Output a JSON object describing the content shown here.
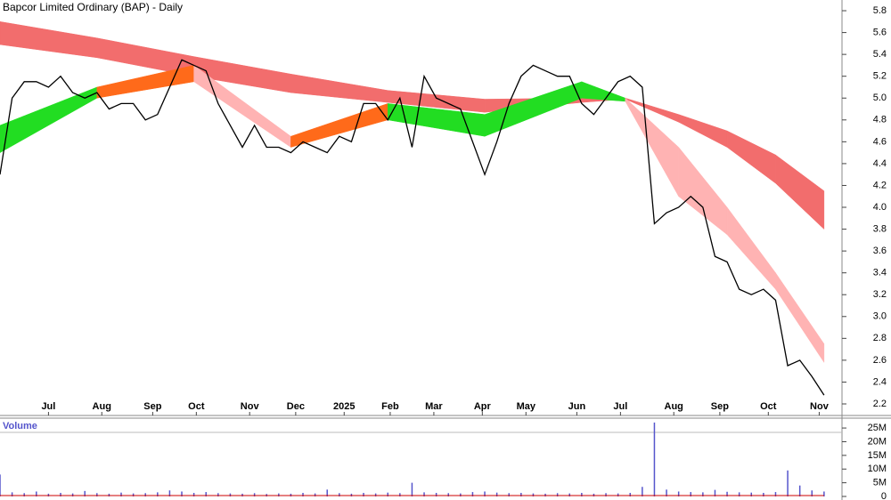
{
  "chart_data": [
    {
      "type": "stock",
      "title": "Bapcor Limited Ordinary (BAP) - Daily",
      "xlim": [
        0,
        347.4
      ],
      "xticks": [
        {
          "value": 20,
          "label": "Jul"
        },
        {
          "value": 42,
          "label": "Aug"
        },
        {
          "value": 63,
          "label": "Sep"
        },
        {
          "value": 81,
          "label": "Oct"
        },
        {
          "value": 103,
          "label": "Nov"
        },
        {
          "value": 122,
          "label": "Dec"
        },
        {
          "value": 142,
          "label": "2025"
        },
        {
          "value": 161,
          "label": "Feb"
        },
        {
          "value": 179,
          "label": "Mar"
        },
        {
          "value": 199,
          "label": "Apr"
        },
        {
          "value": 217,
          "label": "May"
        },
        {
          "value": 238,
          "label": "Jun"
        },
        {
          "value": 256,
          "label": "Jul"
        },
        {
          "value": 278,
          "label": "Aug"
        },
        {
          "value": 297,
          "label": "Sep"
        },
        {
          "value": 317,
          "label": "Oct"
        },
        {
          "value": 338,
          "label": "Nov"
        }
      ],
      "ylim": [
        2.094,
        5.898
      ],
      "yticks": [
        2.2,
        2.4,
        2.6,
        2.8,
        {
          "value": 3,
          "label": "3.0"
        },
        3.2,
        3.4,
        3.6,
        3.8,
        {
          "value": 4,
          "label": "4.0"
        },
        4.2,
        4.4,
        4.6,
        4.8,
        {
          "value": 5,
          "label": "5.0"
        },
        5.2,
        5.4,
        5.6,
        5.8
      ],
      "x": [
        0,
        5,
        10,
        15,
        20,
        25,
        30,
        35,
        40,
        45,
        50,
        55,
        60,
        65,
        70,
        75,
        80,
        85,
        90,
        95,
        100,
        105,
        110,
        115,
        120,
        125,
        130,
        135,
        140,
        145,
        150,
        155,
        160,
        165,
        170,
        175,
        180,
        185,
        190,
        195,
        200,
        205,
        210,
        215,
        220,
        225,
        230,
        235,
        240,
        245,
        250,
        255,
        260,
        265,
        270,
        275,
        280,
        285,
        290,
        295,
        300,
        305,
        310,
        315,
        320,
        325,
        330,
        335,
        340
      ],
      "series": [
        {
          "color": "#000000",
          "values": [
            4.3,
            5.0,
            5.15,
            5.15,
            5.1,
            5.2,
            5.05,
            5.0,
            5.05,
            4.9,
            4.95,
            4.95,
            4.8,
            4.85,
            5.1,
            5.35,
            5.3,
            5.25,
            4.95,
            4.75,
            4.55,
            4.75,
            4.55,
            4.55,
            4.5,
            4.6,
            4.55,
            4.5,
            4.65,
            4.6,
            4.95,
            4.95,
            4.8,
            5.0,
            4.55,
            5.2,
            5.0,
            4.95,
            4.9,
            4.6,
            4.3,
            4.6,
            4.95,
            5.2,
            5.3,
            5.25,
            5.2,
            5.2,
            4.95,
            4.85,
            5.0,
            5.15,
            5.2,
            5.1,
            3.85,
            3.95,
            4.0,
            4.1,
            4.0,
            3.55,
            3.5,
            3.25,
            3.2,
            3.25,
            3.15,
            2.55,
            2.6,
            2.45,
            2.28
          ]
        }
      ],
      "bands": [
        {
          "color": "#f26d6d",
          "x": [
            0,
            40,
            80,
            120,
            160,
            200,
            240,
            258,
            280,
            300,
            320,
            340
          ],
          "upper": [
            5.7,
            5.55,
            5.38,
            5.22,
            5.07,
            4.99,
            5.0,
            5.0,
            4.85,
            4.7,
            4.48,
            4.15
          ],
          "lower": [
            5.49,
            5.37,
            5.2,
            5.05,
            4.96,
            4.87,
            4.96,
            4.99,
            4.78,
            4.55,
            4.22,
            3.8
          ]
        },
        {
          "segment_colors": [
            "#22dd22",
            "#ff6a1a",
            "#ffb3b3",
            "#ff6a1a",
            "#22dd22",
            "#22dd22",
            "#22dd22",
            "#ffb3b3",
            "#ffb3b3",
            "#ffb3b3",
            "#ffb3b3"
          ],
          "x": [
            0,
            40,
            80,
            120,
            160,
            200,
            240,
            258,
            280,
            300,
            320,
            340
          ],
          "upper": [
            4.75,
            5.1,
            5.3,
            4.65,
            4.95,
            4.85,
            5.15,
            5.0,
            4.55,
            4.0,
            3.4,
            2.75
          ],
          "lower": [
            4.5,
            5.0,
            5.15,
            4.55,
            4.8,
            4.65,
            5.0,
            4.97,
            4.1,
            3.75,
            3.25,
            2.58
          ]
        }
      ]
    },
    {
      "type": "bar",
      "title": "Volume",
      "color": "#5555cc",
      "line_color": "#cc0000",
      "xlim": [
        0,
        347.4
      ],
      "ylim": [
        0,
        28600000
      ],
      "yticks": [
        0,
        {
          "value": 5000000,
          "label": "5M"
        },
        {
          "value": 10000000,
          "label": "10M"
        },
        {
          "value": 15000000,
          "label": "15M"
        },
        {
          "value": 20000000,
          "label": "20M"
        },
        {
          "value": 25000000,
          "label": "25M"
        }
      ],
      "x": [
        0,
        5,
        10,
        15,
        20,
        25,
        30,
        35,
        40,
        45,
        50,
        55,
        60,
        65,
        70,
        75,
        80,
        85,
        90,
        95,
        100,
        105,
        110,
        115,
        120,
        125,
        130,
        135,
        140,
        145,
        150,
        155,
        160,
        165,
        170,
        175,
        180,
        185,
        190,
        195,
        200,
        205,
        210,
        215,
        220,
        225,
        230,
        235,
        240,
        245,
        250,
        255,
        260,
        265,
        270,
        275,
        280,
        285,
        290,
        295,
        300,
        305,
        310,
        315,
        320,
        325,
        330,
        335,
        340
      ],
      "values": [
        8000000,
        1500000,
        1200000,
        1800000,
        1000000,
        1300000,
        1100000,
        2000000,
        1200000,
        1000000,
        1400000,
        1100000,
        1200000,
        1500000,
        2200000,
        1800000,
        1300000,
        1600000,
        1200000,
        1100000,
        1000000,
        1200000,
        900000,
        1100000,
        1000000,
        1300000,
        1100000,
        2500000,
        1200000,
        1000000,
        1300000,
        1100000,
        1400000,
        1200000,
        5000000,
        1500000,
        1300000,
        1200000,
        1100000,
        1600000,
        1800000,
        1400000,
        1200000,
        1300000,
        1100000,
        1000000,
        1200000,
        1100000,
        1300000,
        1000000,
        1200000,
        1100000,
        1300000,
        3500000,
        27000000,
        2500000,
        1800000,
        1600000,
        1500000,
        2400000,
        1700000,
        1500000,
        1400000,
        1300000,
        1600000,
        9500000,
        4000000,
        2200000,
        1800000
      ]
    }
  ]
}
